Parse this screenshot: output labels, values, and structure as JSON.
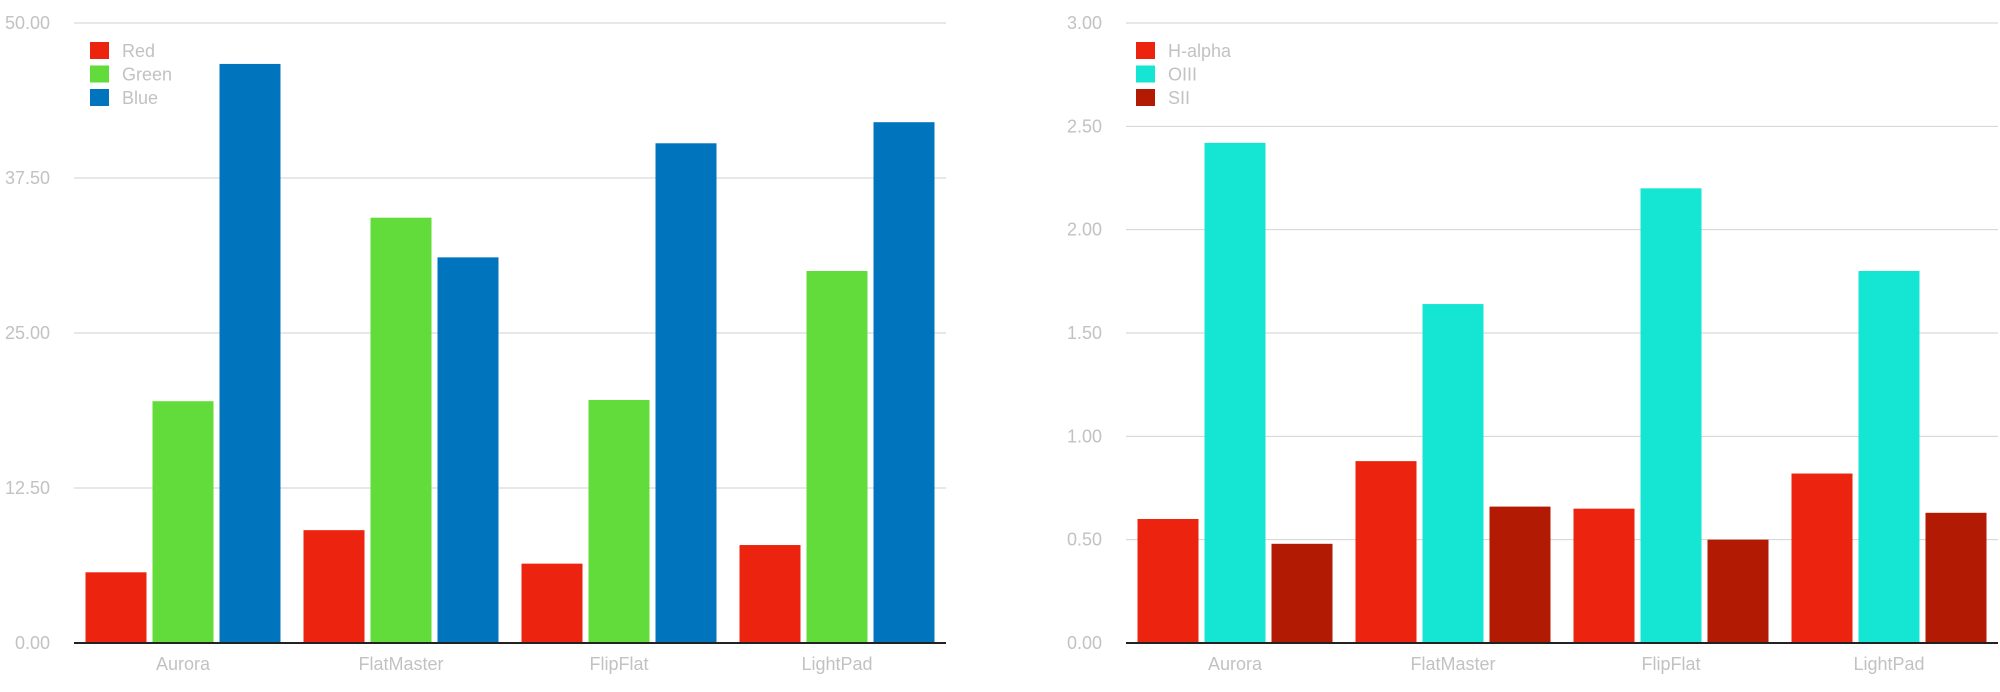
{
  "chart_data": [
    {
      "type": "bar",
      "categories": [
        "Aurora",
        "FlatMaster",
        "FlipFlat",
        "LightPad"
      ],
      "series": [
        {
          "name": "Red",
          "color": "#ec230f",
          "values": [
            5.7,
            9.1,
            6.4,
            7.9
          ]
        },
        {
          "name": "Green",
          "color": "#61dc3a",
          "values": [
            19.5,
            34.3,
            19.6,
            30.0
          ]
        },
        {
          "name": "Blue",
          "color": "#0075bd",
          "values": [
            46.7,
            31.1,
            40.3,
            42.0
          ]
        }
      ],
      "ylim": [
        0,
        50
      ],
      "yticks": [
        "0.00",
        "12.50",
        "25.00",
        "37.50",
        "50.00"
      ],
      "legend": "top-left",
      "grid": true
    },
    {
      "type": "bar",
      "categories": [
        "Aurora",
        "FlatMaster",
        "FlipFlat",
        "LightPad"
      ],
      "series": [
        {
          "name": "H-alpha",
          "color": "#ec230f",
          "values": [
            0.6,
            0.88,
            0.65,
            0.82
          ]
        },
        {
          "name": "OIII",
          "color": "#15e5d3",
          "values": [
            2.42,
            1.64,
            2.2,
            1.8
          ]
        },
        {
          "name": "SII",
          "color": "#b31a04",
          "values": [
            0.48,
            0.66,
            0.5,
            0.63
          ]
        }
      ],
      "ylim": [
        0,
        3
      ],
      "yticks": [
        "0.00",
        "0.50",
        "1.00",
        "1.50",
        "2.00",
        "2.50",
        "3.00"
      ],
      "legend": "top-left",
      "grid": true
    }
  ],
  "style": {
    "label_color": "#c2c2c2",
    "grid_color": "#d2d2d2",
    "axis_color": "#222222"
  }
}
